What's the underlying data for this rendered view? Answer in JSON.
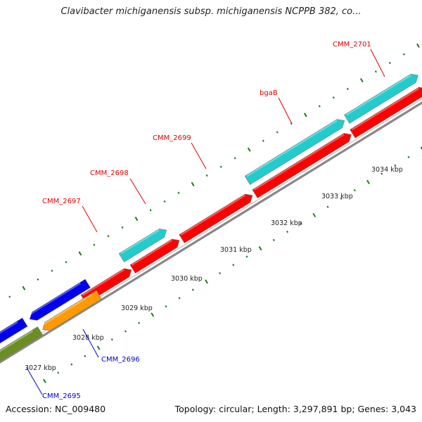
{
  "title": "Clavibacter michiganensis subsp. michiganensis NCPPB 382, co...",
  "footer": {
    "accession": "Accession: NC_009480",
    "summary": "Topology: circular; Length: 3,297,891 bp; Genes: 3,043"
  },
  "colors": {
    "backbone": "#888888",
    "ticks": "#1e7a1e",
    "forward_label": "#e00000",
    "reverse_label": "#0000cc",
    "cds_red": "#ff0000",
    "cds_cyan": "#22cccc",
    "cds_blue": "#0000ee",
    "cds_orange": "#ff9900",
    "cds_olive": "#6b8e23"
  },
  "scale_labels": [
    "3027 kbp",
    "3028 kbp",
    "3029 kbp",
    "3030 kbp",
    "3031 kbp",
    "3032 kbp",
    "3033 kbp",
    "3034 kbp"
  ],
  "gene_labels": {
    "forward": [
      "CMM_2697",
      "CMM_2698",
      "CMM_2699",
      "bgaB",
      "CMM_2701"
    ],
    "reverse": [
      "CMM_2695",
      "CMM_2696"
    ]
  }
}
